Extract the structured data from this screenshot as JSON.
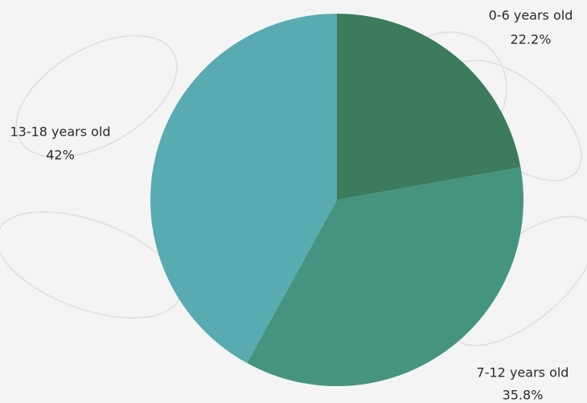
{
  "chart_data": {
    "type": "pie",
    "categories": [
      "0-6 years old",
      "7-12 years old",
      "13-18 years old"
    ],
    "values": [
      22.2,
      35.8,
      42
    ],
    "value_labels": [
      "22.2%",
      "35.8%",
      "42%"
    ],
    "colors": [
      "#3c7b5b",
      "#45947f",
      "#58abb1"
    ]
  }
}
